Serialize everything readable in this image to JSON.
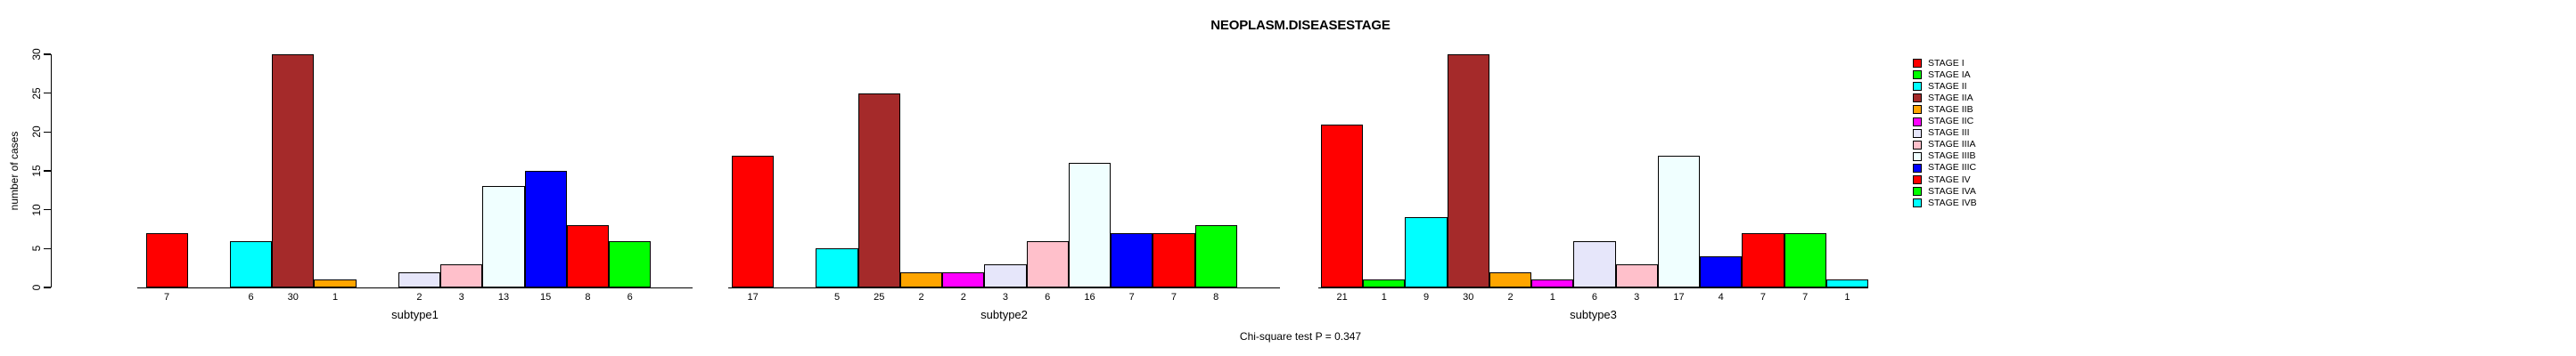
{
  "title": "NEOPLASM.DISEASESTAGE",
  "footer_note": "Chi-square test P = 0.347",
  "chart_data": {
    "type": "bar",
    "title": "NEOPLASM.DISEASESTAGE",
    "ylabel": "number of cases",
    "ylim": [
      0,
      30
    ],
    "yticks": [
      0,
      5,
      10,
      15,
      20,
      25,
      30
    ],
    "grid": false,
    "legend_position": "right",
    "annotation": "Chi-square test P = 0.347",
    "categories": [
      "STAGE I",
      "STAGE IA",
      "STAGE II",
      "STAGE IIA",
      "STAGE IIB",
      "STAGE IIC",
      "STAGE III",
      "STAGE IIIA",
      "STAGE IIIB",
      "STAGE IIIC",
      "STAGE IV",
      "STAGE IVA",
      "STAGE IVB"
    ],
    "colors": [
      "#FF0000",
      "#00FF00",
      "#00FFFF",
      "#A52A2A",
      "#FFA500",
      "#FF00FF",
      "#E6E6FA",
      "#FFC0CB",
      "#F0FFFF",
      "#0000FF",
      "#FF0000",
      "#00FF00",
      "#00FFFF"
    ],
    "series": [
      {
        "name": "subtype1",
        "values": [
          7,
          0,
          6,
          30,
          1,
          0,
          2,
          3,
          13,
          15,
          8,
          6,
          0
        ]
      },
      {
        "name": "subtype2",
        "values": [
          17,
          0,
          5,
          25,
          2,
          2,
          3,
          6,
          16,
          7,
          7,
          8,
          0
        ]
      },
      {
        "name": "subtype3",
        "values": [
          21,
          1,
          9,
          30,
          2,
          1,
          6,
          3,
          17,
          4,
          7,
          7,
          1
        ]
      }
    ],
    "bar_value_labels_shown": true,
    "zero_bars_hidden": true
  },
  "legend": {
    "entries": [
      {
        "label": "STAGE I",
        "color": "#FF0000"
      },
      {
        "label": "STAGE IA",
        "color": "#00FF00"
      },
      {
        "label": "STAGE II",
        "color": "#00FFFF"
      },
      {
        "label": "STAGE IIA",
        "color": "#A52A2A"
      },
      {
        "label": "STAGE IIB",
        "color": "#FFA500"
      },
      {
        "label": "STAGE IIC",
        "color": "#FF00FF"
      },
      {
        "label": "STAGE III",
        "color": "#E6E6FA"
      },
      {
        "label": "STAGE IIIA",
        "color": "#FFC0CB"
      },
      {
        "label": "STAGE IIIB",
        "color": "#F0FFFF"
      },
      {
        "label": "STAGE IIIC",
        "color": "#0000FF"
      },
      {
        "label": "STAGE IV",
        "color": "#FF0000"
      },
      {
        "label": "STAGE IVA",
        "color": "#00FF00"
      },
      {
        "label": "STAGE IVB",
        "color": "#00FFFF"
      }
    ]
  }
}
